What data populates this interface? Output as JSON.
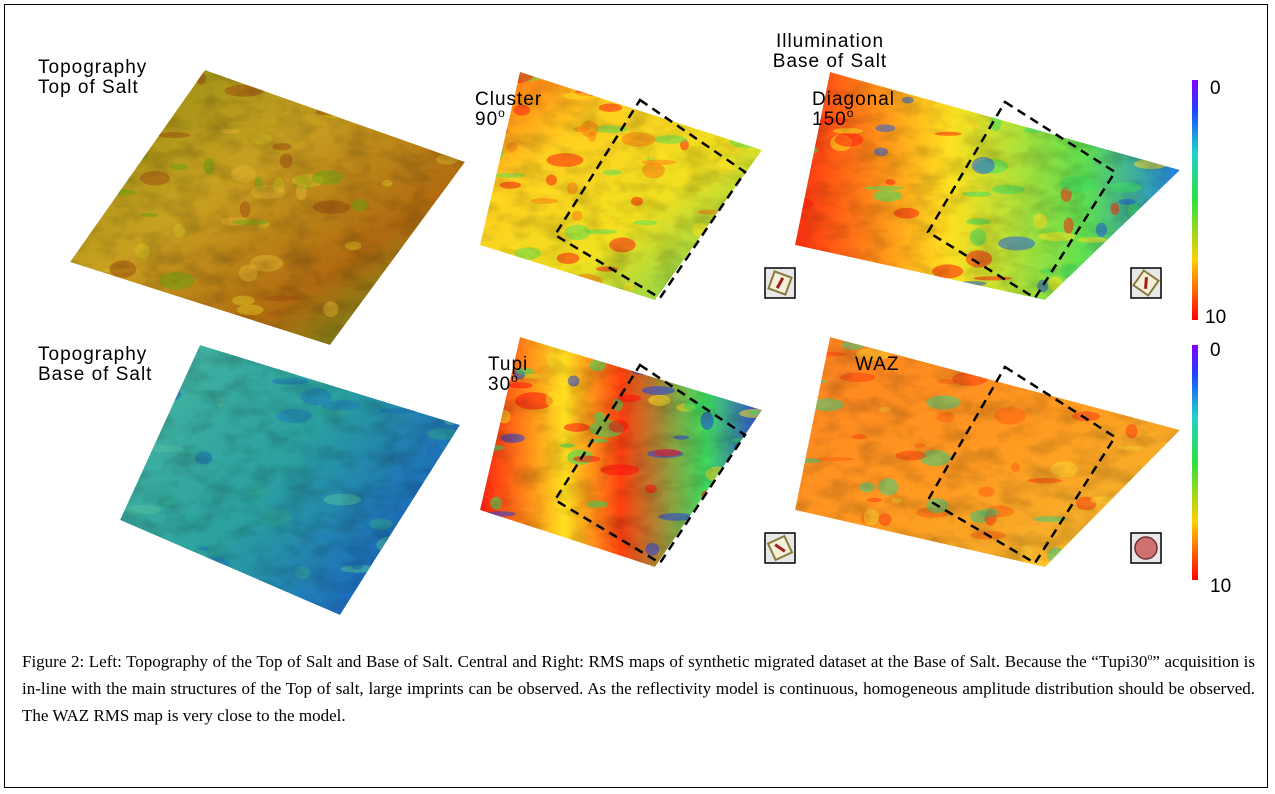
{
  "header": {
    "title_lines": [
      "Illumination",
      "Base of Salt"
    ]
  },
  "panels": [
    {
      "label_lines": [
        "Topography",
        "Top of Salt"
      ]
    },
    {
      "label_lines": [
        "Topography",
        "Base of Salt"
      ]
    },
    {
      "label_lines": [
        "Cluster",
        "90"
      ],
      "sup": "o"
    },
    {
      "label_lines": [
        "Diagonal",
        "150"
      ],
      "sup": "o"
    },
    {
      "label_lines": [
        "Tupi",
        "30"
      ],
      "sup": "o"
    },
    {
      "label_lines": [
        "WAZ"
      ]
    }
  ],
  "colorbars": [
    {
      "top_label": 0,
      "bottom_label": 10
    },
    {
      "top_label": 0,
      "bottom_label": 10
    }
  ],
  "caption": {
    "parts": [
      "Figure 2: Left: Topography of the Top of Salt and Base of Salt. Central and Right: RMS maps of synthetic migrated dataset at the Base of Salt. Because the “Tupi30",
      "o",
      "” acquisition is in-line with the main structures of the Top of salt, large imprints can be observed. As the reflectivity model is continuous, homogeneous amplitude distribution should be observed. The WAZ RMS map is very close to the model."
    ]
  }
}
